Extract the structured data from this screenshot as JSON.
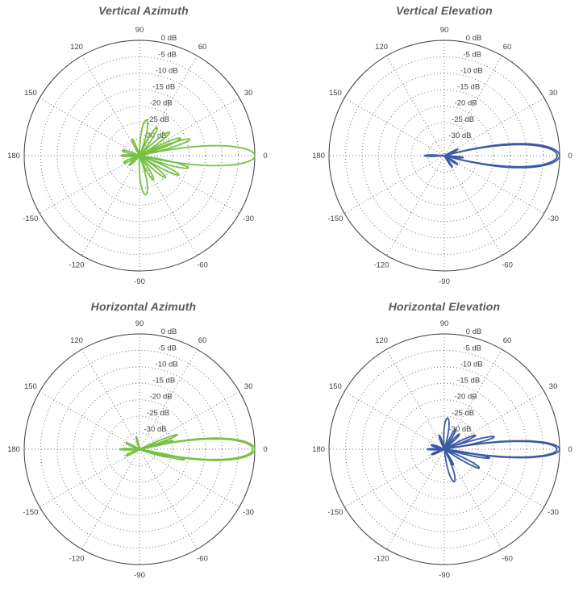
{
  "page": {
    "background": "#ffffff"
  },
  "chart_data": [
    {
      "type": "polar",
      "title": "Vertical Azimuth",
      "line_color": "#76C043",
      "angle_unit": "deg",
      "angle_step_deg": 30,
      "angle_labels": [
        90,
        60,
        30,
        0,
        -30,
        -60,
        -90,
        -120,
        -150,
        180,
        150,
        120
      ],
      "radial_ticks_db": [
        0,
        -5,
        -10,
        -15,
        -20,
        -25,
        -30
      ],
      "radial_labels": [
        "0 dB",
        "-5 dB",
        "-10 dB",
        "-15 dB",
        "-20 dB",
        "-25 dB",
        "-30 dB"
      ],
      "r_floor_db": -35,
      "grid": "dotted",
      "lobes": [
        {
          "angle_deg": 0,
          "peak_db": 0,
          "halfwidth_deg": 13
        },
        {
          "angle_deg": 18,
          "peak_db": -19,
          "halfwidth_deg": 6
        },
        {
          "angle_deg": 23,
          "peak_db": -21.5,
          "halfwidth_deg": 6
        },
        {
          "angle_deg": 38,
          "peak_db": -23.5,
          "halfwidth_deg": 7
        },
        {
          "angle_deg": 58,
          "peak_db": -25,
          "halfwidth_deg": 8
        },
        {
          "angle_deg": 79,
          "peak_db": -24,
          "halfwidth_deg": 11
        },
        {
          "angle_deg": 114,
          "peak_db": -29.5,
          "halfwidth_deg": 7
        },
        {
          "angle_deg": 163,
          "peak_db": -29.6,
          "halfwidth_deg": 8
        },
        {
          "angle_deg": 180,
          "peak_db": -29.4,
          "halfwidth_deg": 6
        },
        {
          "angle_deg": -156,
          "peak_db": -29.7,
          "halfwidth_deg": 8
        },
        {
          "angle_deg": -137,
          "peak_db": -30.7,
          "halfwidth_deg": 7
        },
        {
          "angle_deg": -14,
          "peak_db": -19.8,
          "halfwidth_deg": 6
        },
        {
          "angle_deg": -26,
          "peak_db": -21.7,
          "halfwidth_deg": 6
        },
        {
          "angle_deg": -40,
          "peak_db": -24.7,
          "halfwidth_deg": 7
        },
        {
          "angle_deg": -60,
          "peak_db": -26.5,
          "halfwidth_deg": 8
        },
        {
          "angle_deg": -81,
          "peak_db": -23,
          "halfwidth_deg": 12
        }
      ]
    },
    {
      "type": "polar",
      "title": "Vertical Elevation",
      "line_color": "#3B5AA5",
      "angle_unit": "deg",
      "angle_step_deg": 30,
      "angle_labels": [
        90,
        60,
        30,
        0,
        -30,
        -60,
        -90,
        -120,
        -150,
        180,
        150,
        120
      ],
      "radial_ticks_db": [
        0,
        -5,
        -10,
        -15,
        -20,
        -25,
        -30
      ],
      "radial_labels": [
        "0 dB",
        "-5 dB",
        "-10 dB",
        "-15 dB",
        "-20 dB",
        "-25 dB",
        "-30 dB"
      ],
      "r_floor_db": -35,
      "grid": "dotted",
      "lobes": [
        {
          "angle_deg": 0,
          "peak_db": 0,
          "halfwidth_deg": 15.6
        },
        {
          "angle_deg": 0,
          "peak_db": -0.7,
          "halfwidth_deg": 14.6
        },
        {
          "angle_deg": 25,
          "peak_db": -30.5,
          "halfwidth_deg": 5
        },
        {
          "angle_deg": 180,
          "peak_db": -29,
          "halfwidth_deg": 5
        },
        {
          "angle_deg": -6,
          "peak_db": -29.2,
          "halfwidth_deg": 4
        },
        {
          "angle_deg": -33,
          "peak_db": -30.2,
          "halfwidth_deg": 6
        },
        {
          "angle_deg": -55,
          "peak_db": -30.8,
          "halfwidth_deg": 6
        }
      ]
    },
    {
      "type": "polar",
      "title": "Horizontal Azimuth",
      "line_color": "#76C043",
      "angle_unit": "deg",
      "angle_step_deg": 30,
      "angle_labels": [
        90,
        60,
        30,
        0,
        -30,
        -60,
        -90,
        -120,
        -150,
        180,
        150,
        120
      ],
      "radial_ticks_db": [
        0,
        -5,
        -10,
        -15,
        -20,
        -25,
        -30
      ],
      "radial_labels": [
        "0 dB",
        "-5 dB",
        "-10 dB",
        "-15 dB",
        "-20 dB",
        "-25 dB",
        "-30 dB"
      ],
      "r_floor_db": -35,
      "grid": "dotted",
      "lobes": [
        {
          "angle_deg": 0,
          "peak_db": 0,
          "halfwidth_deg": 14.4
        },
        {
          "angle_deg": 0,
          "peak_db": -0.6,
          "halfwidth_deg": 13.6
        },
        {
          "angle_deg": 21,
          "peak_db": -22.7,
          "halfwidth_deg": 4
        },
        {
          "angle_deg": 14,
          "peak_db": -24.5,
          "halfwidth_deg": 4
        },
        {
          "angle_deg": -15,
          "peak_db": -26,
          "halfwidth_deg": 5
        },
        {
          "angle_deg": -13,
          "peak_db": -21,
          "halfwidth_deg": 3.5
        },
        {
          "angle_deg": 105,
          "peak_db": -31,
          "halfwidth_deg": 5
        },
        {
          "angle_deg": 155,
          "peak_db": -30.5,
          "halfwidth_deg": 8
        },
        {
          "angle_deg": 180,
          "peak_db": -29,
          "halfwidth_deg": 5
        },
        {
          "angle_deg": -155,
          "peak_db": -30.5,
          "halfwidth_deg": 8
        }
      ]
    },
    {
      "type": "polar",
      "title": "Horizontal Elevation",
      "line_color": "#3B5AA5",
      "angle_unit": "deg",
      "angle_step_deg": 30,
      "angle_labels": [
        90,
        60,
        30,
        0,
        -30,
        -60,
        -90,
        -120,
        -150,
        180,
        150,
        120
      ],
      "radial_ticks_db": [
        0,
        -5,
        -10,
        -15,
        -20,
        -25,
        -30
      ],
      "radial_labels": [
        "0 dB",
        "-5 dB",
        "-10 dB",
        "-15 dB",
        "-20 dB",
        "-25 dB",
        "-30 dB"
      ],
      "r_floor_db": -35,
      "grid": "dotted",
      "lobes": [
        {
          "angle_deg": 0,
          "peak_db": 0,
          "halfwidth_deg": 11
        },
        {
          "angle_deg": 0,
          "peak_db": -0.8,
          "halfwidth_deg": 10.4
        },
        {
          "angle_deg": 14,
          "peak_db": -19.4,
          "halfwidth_deg": 5
        },
        {
          "angle_deg": 24,
          "peak_db": -24.6,
          "halfwidth_deg": 5
        },
        {
          "angle_deg": 45,
          "peak_db": -28.5,
          "halfwidth_deg": 6
        },
        {
          "angle_deg": 60,
          "peak_db": -28,
          "halfwidth_deg": 6
        },
        {
          "angle_deg": 84,
          "peak_db": -25.5,
          "halfwidth_deg": 11
        },
        {
          "angle_deg": 110,
          "peak_db": -30.5,
          "halfwidth_deg": 7
        },
        {
          "angle_deg": 162,
          "peak_db": -30.8,
          "halfwidth_deg": 8
        },
        {
          "angle_deg": 180,
          "peak_db": -29.8,
          "halfwidth_deg": 5
        },
        {
          "angle_deg": -158,
          "peak_db": -30.8,
          "halfwidth_deg": 8
        },
        {
          "angle_deg": -11,
          "peak_db": -21,
          "halfwidth_deg": 4
        },
        {
          "angle_deg": -28,
          "peak_db": -23,
          "halfwidth_deg": 6
        },
        {
          "angle_deg": -60,
          "peak_db": -29.5,
          "halfwidth_deg": 6
        },
        {
          "angle_deg": -73,
          "peak_db": -24.7,
          "halfwidth_deg": 11
        }
      ]
    }
  ]
}
